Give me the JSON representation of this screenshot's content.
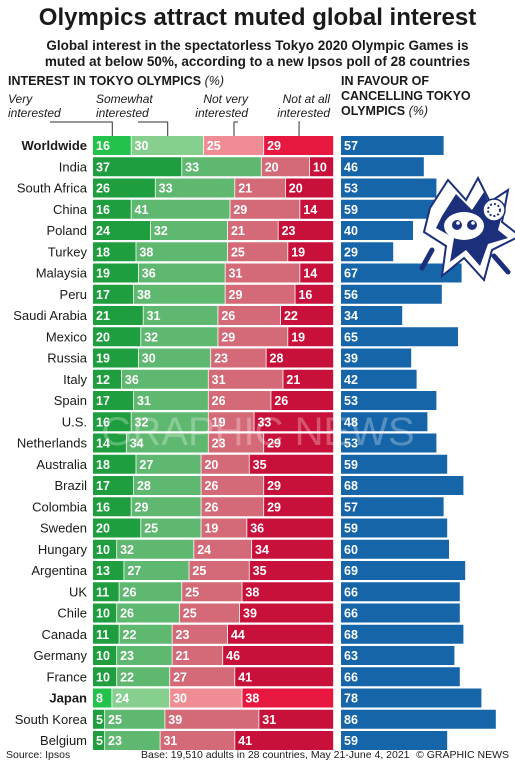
{
  "title": "Olympics attract muted global interest",
  "subtitle_line1": "Global interest in the spectatorless Tokyo 2020 Olympic Games is",
  "subtitle_line2": "muted at below 50%, according to a new Ipsos poll of 28 countries",
  "left_header": "INTEREST IN TOKYO OLYMPICS",
  "left_header_unit": "(%)",
  "right_header_line1": "IN FAVOUR OF",
  "right_header_line2": "CANCELLING TOKYO",
  "right_header_line3": "OLYMPICS",
  "right_header_unit": "(%)",
  "categories": {
    "very_line1": "Very",
    "very_line2": "interested",
    "somewhat_line1": "Somewhat",
    "somewhat_line2": "interested",
    "notvery_line1": "Not very",
    "notvery_line2": "interested",
    "notatall_line1": "Not at all",
    "notatall_line2": "interested"
  },
  "footer": {
    "source": "Source: Ipsos",
    "base": "Base: 19,510 adults in 28 countries, May 21-June 4, 2021",
    "credit": "© GRAPHIC NEWS"
  },
  "watermark": "GRAPHIC NEWS",
  "colors": {
    "very": "#1e9e3e",
    "somewhat": "#5fb870",
    "notvery": "#d46a77",
    "notatall": "#c8113a",
    "very_hl": "#22c24b",
    "somewhat_hl": "#86cf8f",
    "notvery_hl": "#f08c93",
    "notatall_hl": "#e8173f",
    "cancel": "#1565a8"
  },
  "chart_data": {
    "type": "bar",
    "stacked": true,
    "categories": [
      "Worldwide",
      "India",
      "South Africa",
      "China",
      "Poland",
      "Turkey",
      "Malaysia",
      "Peru",
      "Saudi Arabia",
      "Mexico",
      "Russia",
      "Italy",
      "Spain",
      "U.S.",
      "Netherlands",
      "Australia",
      "Brazil",
      "Colombia",
      "Sweden",
      "Hungary",
      "Argentina",
      "UK",
      "Chile",
      "Canada",
      "Germany",
      "France",
      "Japan",
      "South Korea",
      "Belgium"
    ],
    "highlight": [
      "Worldwide",
      "Japan"
    ],
    "series": [
      {
        "name": "Very interested",
        "values": [
          16,
          37,
          26,
          16,
          24,
          18,
          19,
          17,
          21,
          20,
          19,
          12,
          17,
          16,
          14,
          18,
          17,
          16,
          20,
          10,
          13,
          11,
          10,
          11,
          10,
          10,
          8,
          5,
          5
        ]
      },
      {
        "name": "Somewhat interested",
        "values": [
          30,
          33,
          33,
          41,
          32,
          38,
          36,
          38,
          31,
          32,
          30,
          36,
          31,
          32,
          34,
          27,
          28,
          29,
          25,
          32,
          27,
          26,
          26,
          22,
          23,
          22,
          24,
          25,
          23
        ]
      },
      {
        "name": "Not very interested",
        "values": [
          25,
          20,
          21,
          29,
          21,
          25,
          31,
          29,
          26,
          29,
          23,
          31,
          26,
          19,
          23,
          20,
          26,
          26,
          19,
          24,
          25,
          25,
          25,
          23,
          21,
          27,
          30,
          39,
          31
        ]
      },
      {
        "name": "Not at all interested",
        "values": [
          29,
          10,
          20,
          14,
          23,
          19,
          14,
          16,
          22,
          19,
          28,
          21,
          26,
          33,
          29,
          35,
          29,
          29,
          36,
          34,
          35,
          38,
          39,
          44,
          46,
          41,
          38,
          31,
          41
        ]
      }
    ],
    "cancel_values": [
      57,
      46,
      53,
      59,
      40,
      29,
      67,
      56,
      34,
      65,
      39,
      42,
      53,
      48,
      53,
      59,
      68,
      57,
      59,
      60,
      69,
      66,
      66,
      68,
      63,
      66,
      78,
      86,
      59
    ],
    "xlim": [
      0,
      100
    ]
  }
}
